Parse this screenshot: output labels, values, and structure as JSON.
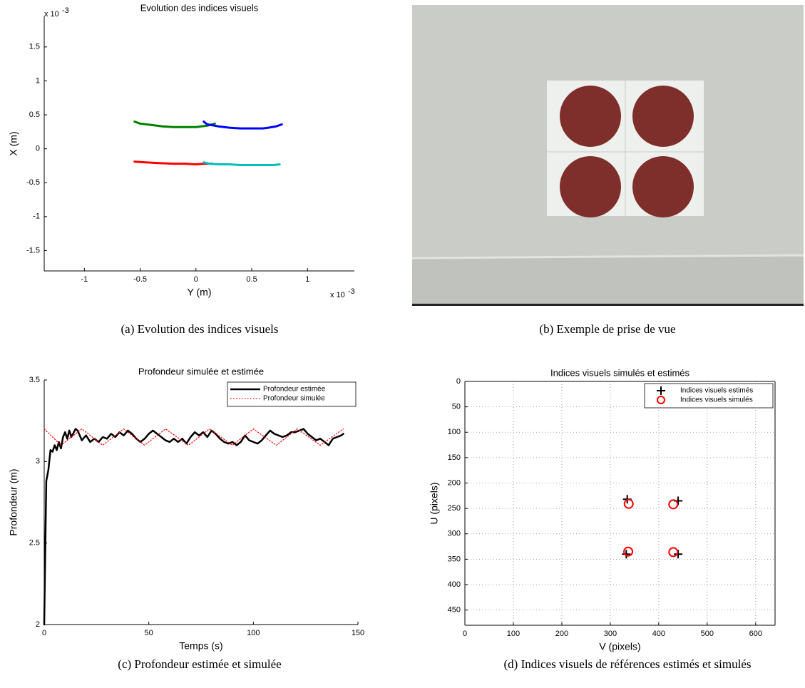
{
  "chart_data": [
    {
      "type": "line",
      "title": "Evolution des indices visuels",
      "x_label": "Y (m)",
      "y_label": "X (m)",
      "caption": "(a)  Evolution des indices visuels",
      "x_offset_text": {
        "base": "x 10",
        "exponent": "-3"
      },
      "y_offset_text": {
        "base": "x 10",
        "exponent": "-3"
      },
      "xlim": [
        -1.36,
        1.42
      ],
      "ylim": [
        -1.8,
        1.95
      ],
      "xticks": [
        -1,
        -0.5,
        0,
        0.5,
        1
      ],
      "yticks": [
        -1.5,
        -1,
        -0.5,
        0,
        0.5,
        1,
        1.5
      ],
      "grid": false,
      "series": [
        {
          "color": "#008000",
          "x": [
            -0.55,
            -0.5,
            -0.4,
            -0.3,
            -0.2,
            -0.1,
            0.0,
            0.05,
            0.1,
            0.17
          ],
          "values": [
            0.4,
            0.37,
            0.35,
            0.33,
            0.32,
            0.32,
            0.32,
            0.33,
            0.34,
            0.37
          ]
        },
        {
          "color": "#0000ff",
          "x": [
            0.07,
            0.1,
            0.2,
            0.3,
            0.4,
            0.5,
            0.6,
            0.65,
            0.72,
            0.77
          ],
          "values": [
            0.4,
            0.36,
            0.33,
            0.31,
            0.3,
            0.3,
            0.3,
            0.31,
            0.33,
            0.36
          ]
        },
        {
          "color": "#ff0000",
          "x": [
            -0.55,
            -0.45,
            -0.35,
            -0.2,
            -0.1,
            0.0,
            0.08,
            0.15
          ],
          "values": [
            -0.19,
            -0.2,
            -0.21,
            -0.22,
            -0.22,
            -0.23,
            -0.22,
            -0.22
          ]
        },
        {
          "color": "#00bfbf",
          "x": [
            0.07,
            0.12,
            0.2,
            0.3,
            0.4,
            0.5,
            0.6,
            0.7,
            0.75
          ],
          "values": [
            -0.2,
            -0.22,
            -0.23,
            -0.23,
            -0.24,
            -0.24,
            -0.24,
            -0.24,
            -0.23
          ]
        }
      ]
    },
    {
      "type": "line",
      "title": "Profondeur simulée et estimée",
      "x_label": "Temps (s)",
      "y_label": "Profondeur (m)",
      "caption": "(c)  Profondeur estimée et simulée",
      "xlim": [
        0,
        150
      ],
      "ylim": [
        2,
        3.5
      ],
      "xticks": [
        0,
        50,
        100,
        150
      ],
      "yticks": [
        2,
        2.5,
        3,
        3.5
      ],
      "grid": false,
      "legend": "upper right",
      "series": [
        {
          "name": "Profondeur estimée",
          "color": "#000000",
          "linestyle": "solid",
          "x": [
            0,
            1,
            2,
            3,
            4,
            5,
            6,
            7,
            8,
            9,
            10,
            11,
            12,
            13,
            15,
            16,
            18,
            20,
            22,
            24,
            26,
            28,
            30,
            32,
            34,
            36,
            38,
            40,
            42,
            44,
            46,
            48,
            50,
            52,
            54,
            56,
            58,
            60,
            62,
            64,
            66,
            68,
            70,
            72,
            74,
            76,
            78,
            80,
            82,
            84,
            86,
            88,
            90,
            92,
            94,
            96,
            98,
            100,
            102,
            104,
            106,
            108,
            110,
            112,
            114,
            116,
            118,
            120,
            122,
            124,
            126,
            128,
            130,
            132,
            134,
            136,
            138,
            140,
            142,
            143
          ],
          "values": [
            2,
            2.88,
            2.95,
            3.07,
            3.06,
            3.1,
            3.07,
            3.12,
            3.08,
            3.15,
            3.18,
            3.14,
            3.19,
            3.15,
            3.2,
            3.19,
            3.13,
            3.16,
            3.12,
            3.14,
            3.12,
            3.15,
            3.14,
            3.17,
            3.15,
            3.18,
            3.16,
            3.19,
            3.17,
            3.14,
            3.12,
            3.14,
            3.17,
            3.19,
            3.17,
            3.15,
            3.13,
            3.12,
            3.14,
            3.12,
            3.14,
            3.11,
            3.15,
            3.18,
            3.16,
            3.18,
            3.15,
            3.19,
            3.17,
            3.14,
            3.12,
            3.11,
            3.12,
            3.1,
            3.12,
            3.16,
            3.13,
            3.12,
            3.11,
            3.13,
            3.16,
            3.19,
            3.17,
            3.16,
            3.15,
            3.16,
            3.18,
            3.18,
            3.19,
            3.2,
            3.17,
            3.15,
            3.13,
            3.14,
            3.12,
            3.1,
            3.14,
            3.15,
            3.16,
            3.17
          ]
        },
        {
          "name": "Profondeur simulée",
          "color": "#ff0000",
          "linestyle": "dotted",
          "x": [
            0,
            8,
            18,
            28,
            38,
            48,
            58,
            69,
            79,
            90,
            100,
            111,
            121,
            132,
            143
          ],
          "values": [
            3.2,
            3.1,
            3.2,
            3.1,
            3.2,
            3.1,
            3.2,
            3.1,
            3.2,
            3.1,
            3.2,
            3.1,
            3.2,
            3.1,
            3.2
          ]
        }
      ]
    },
    {
      "type": "scatter",
      "title": "Indices visuels simulés et estimés",
      "x_label": "V (pixels)",
      "y_label": "U (pixels)",
      "caption": "(d)  Indices visuels de références estimés et simulés",
      "xlim": [
        0,
        640
      ],
      "ylim": [
        0,
        480
      ],
      "y_reversed": true,
      "xticks": [
        0,
        100,
        200,
        300,
        400,
        500,
        600
      ],
      "yticks": [
        0,
        50,
        100,
        150,
        200,
        250,
        300,
        350,
        400,
        450
      ],
      "grid": true,
      "legend": "upper right",
      "series": [
        {
          "name": "Indices visuels estimés",
          "color": "#000000",
          "marker": "+",
          "x": [
            335,
            440,
            333,
            440
          ],
          "values": [
            232,
            235,
            340,
            340
          ]
        },
        {
          "name": "Indices visuels simulés",
          "color": "#ff0000",
          "marker": "o",
          "x": [
            338,
            430,
            337,
            430
          ],
          "values": [
            241,
            242,
            335,
            336
          ]
        }
      ]
    }
  ],
  "photo": {
    "caption": "(b)  Exemple de prise de vue"
  }
}
